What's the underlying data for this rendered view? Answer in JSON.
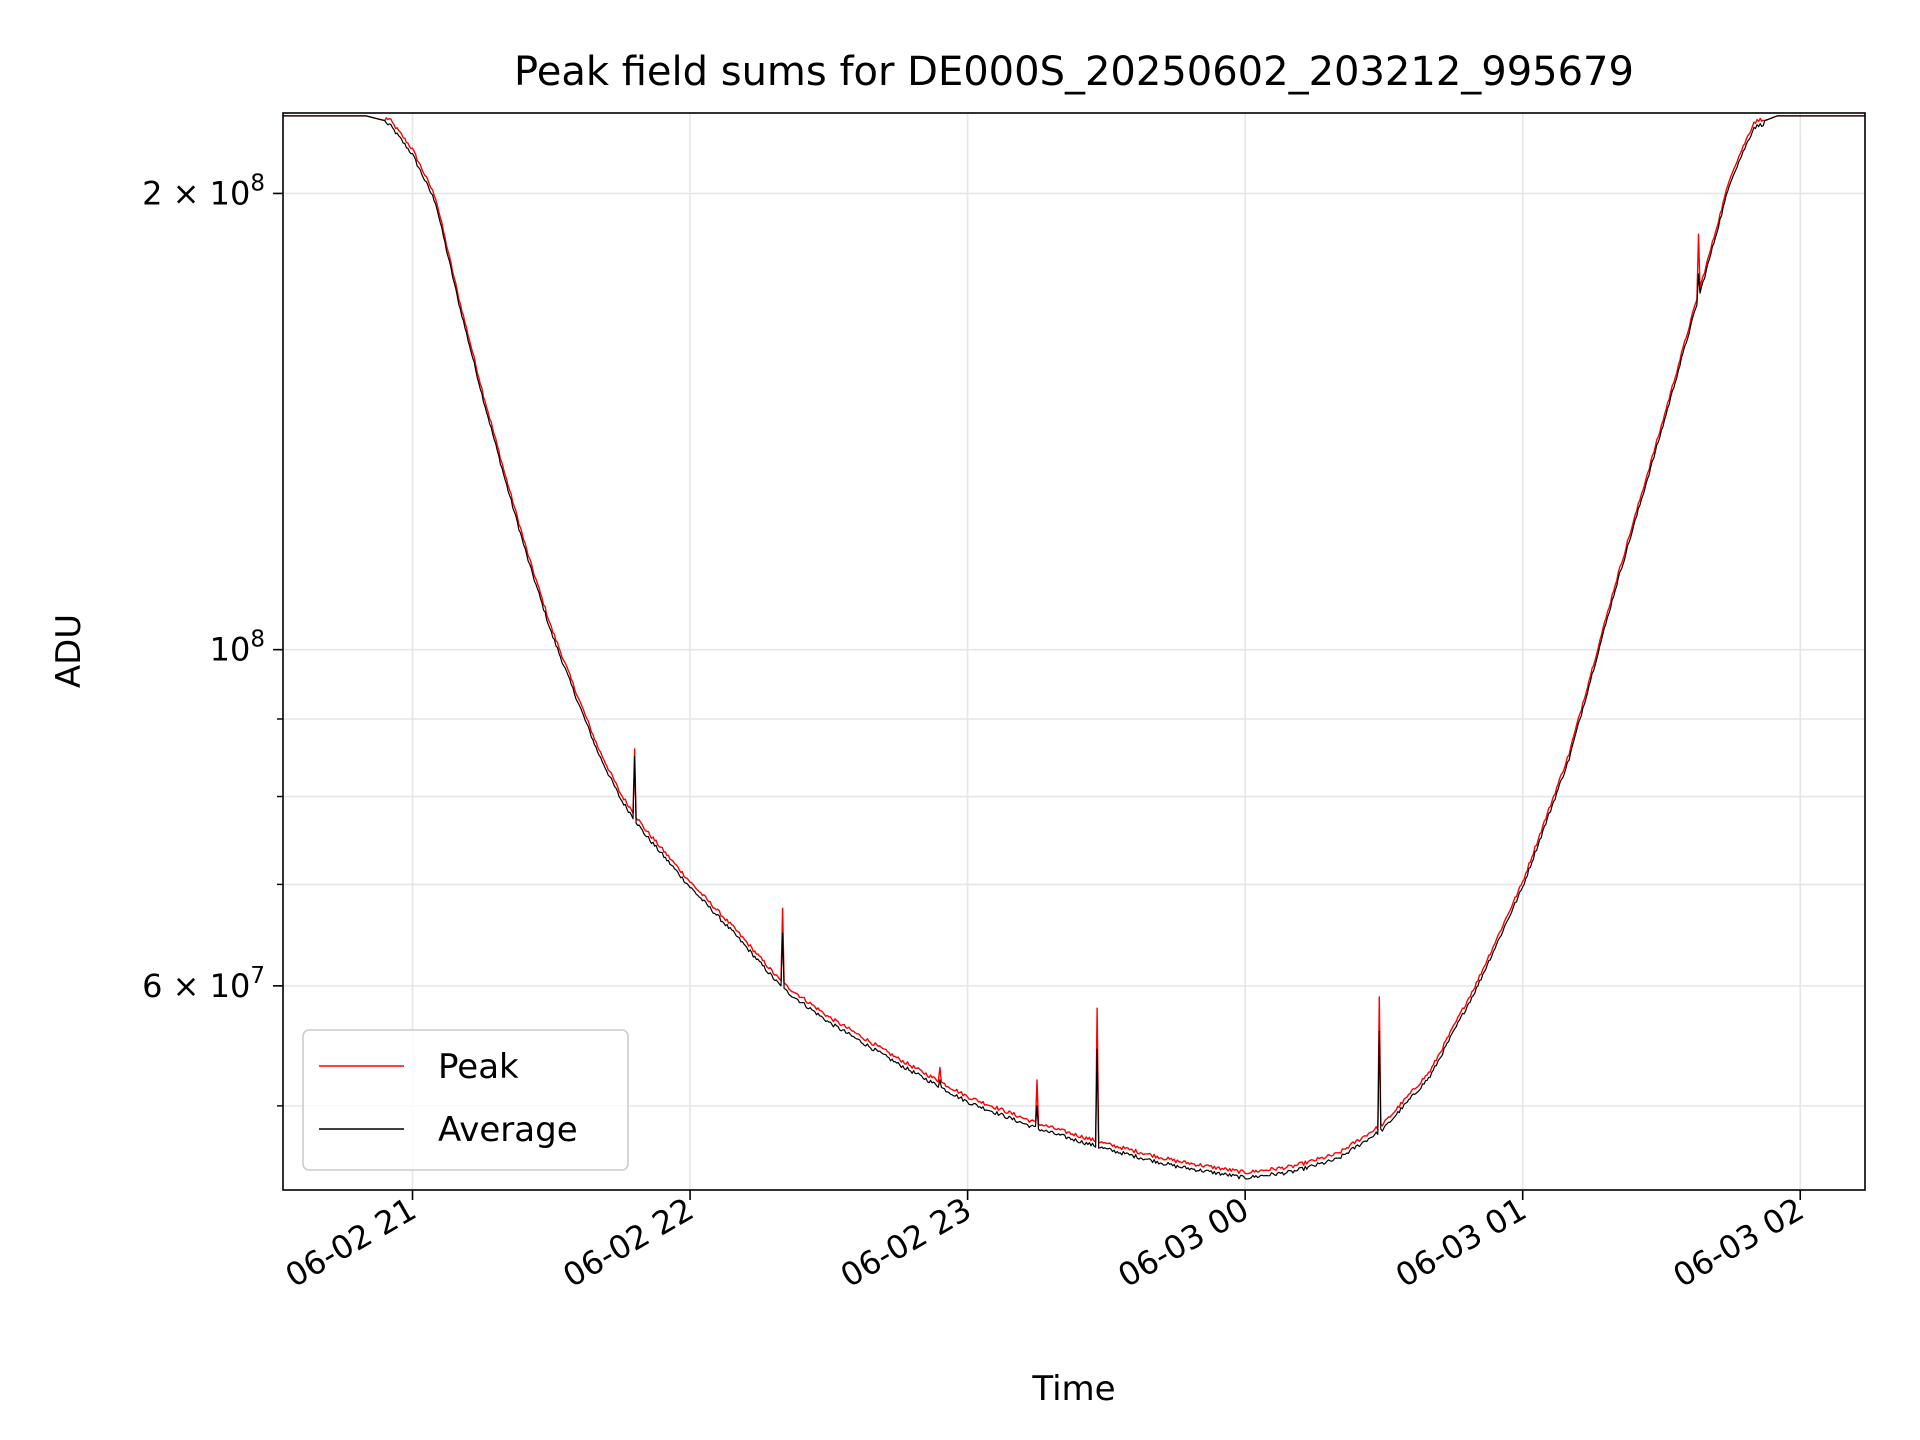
{
  "chart_data": {
    "type": "line",
    "title": "Peak field sums for DE000S_20250602_203212_995679",
    "xlabel": "Time",
    "ylabel": "ADU",
    "yscale": "log",
    "grid": true,
    "legend_position": "lower left",
    "x_ticks": [
      "06-02 21",
      "06-02 22",
      "06-02 23",
      "06-03 00",
      "06-03 01",
      "06-03 02"
    ],
    "y_major_ticks": [
      {
        "value": 60000000,
        "mantissa": "6",
        "base": "10",
        "exponent": "7"
      },
      {
        "value": 100000000,
        "mantissa": "",
        "base": "10",
        "exponent": "8"
      },
      {
        "value": 200000000,
        "mantissa": "2",
        "base": "10",
        "exponent": "8"
      }
    ],
    "y_minor_grid": [
      50000000,
      70000000,
      80000000,
      90000000
    ],
    "xlim": [
      "2025-06-02 20:32",
      "2025-06-03 02:14"
    ],
    "ylim": [
      44000000,
      226000000
    ],
    "series": [
      {
        "name": "Peak",
        "color": "#ff0000"
      },
      {
        "name": "Average",
        "color": "#000000"
      }
    ],
    "base_points": [
      [
        "2025-06-02 20:32",
        225000000
      ],
      [
        "2025-06-02 20:50",
        225000000
      ],
      [
        "2025-06-02 20:55",
        223000000
      ],
      [
        "2025-06-02 21:00",
        213000000
      ],
      [
        "2025-06-02 21:05",
        198000000
      ],
      [
        "2025-06-02 21:10",
        170000000
      ],
      [
        "2025-06-02 21:15",
        148000000
      ],
      [
        "2025-06-02 21:20",
        130000000
      ],
      [
        "2025-06-02 21:25",
        115000000
      ],
      [
        "2025-06-02 21:30",
        103000000
      ],
      [
        "2025-06-02 21:35",
        94000000
      ],
      [
        "2025-06-02 21:40",
        86000000
      ],
      [
        "2025-06-02 21:45",
        80000000
      ],
      [
        "2025-06-02 21:50",
        76000000
      ],
      [
        "2025-06-02 22:00",
        70000000
      ],
      [
        "2025-06-02 22:10",
        65000000
      ],
      [
        "2025-06-02 22:20",
        60000000
      ],
      [
        "2025-06-02 22:30",
        57000000
      ],
      [
        "2025-06-02 22:45",
        53500000
      ],
      [
        "2025-06-02 23:00",
        50500000
      ],
      [
        "2025-06-02 23:15",
        48500000
      ],
      [
        "2025-06-02 23:30",
        47000000
      ],
      [
        "2025-06-02 23:45",
        45800000
      ],
      [
        "2025-06-03 00:00",
        45000000
      ],
      [
        "2025-06-03 00:10",
        45400000
      ],
      [
        "2025-06-03 00:20",
        46300000
      ],
      [
        "2025-06-03 00:30",
        48500000
      ],
      [
        "2025-06-03 00:40",
        52500000
      ],
      [
        "2025-06-03 00:50",
        60000000
      ],
      [
        "2025-06-03 01:00",
        70000000
      ],
      [
        "2025-06-03 01:10",
        85000000
      ],
      [
        "2025-06-03 01:20",
        110000000
      ],
      [
        "2025-06-03 01:30",
        140000000
      ],
      [
        "2025-06-03 01:40",
        180000000
      ],
      [
        "2025-06-03 01:45",
        205000000
      ],
      [
        "2025-06-03 01:50",
        222000000
      ],
      [
        "2025-06-03 01:55",
        225000000
      ],
      [
        "2025-06-03 02:14",
        225000000
      ]
    ],
    "spikes": [
      {
        "time": "2025-06-02 21:48",
        "peak": 86000000,
        "average": 85000000
      },
      {
        "time": "2025-06-02 22:20",
        "peak": 67500000,
        "average": 65000000
      },
      {
        "time": "2025-06-02 22:54",
        "peak": 53000000,
        "average": 52000000
      },
      {
        "time": "2025-06-02 23:15",
        "peak": 52000000,
        "average": 50000000
      },
      {
        "time": "2025-06-02 23:28",
        "peak": 58000000,
        "average": 54500000
      },
      {
        "time": "2025-06-03 00:29",
        "peak": 59000000,
        "average": 56000000
      },
      {
        "time": "2025-06-03 01:38",
        "peak": 188000000,
        "average": 177000000
      }
    ]
  }
}
